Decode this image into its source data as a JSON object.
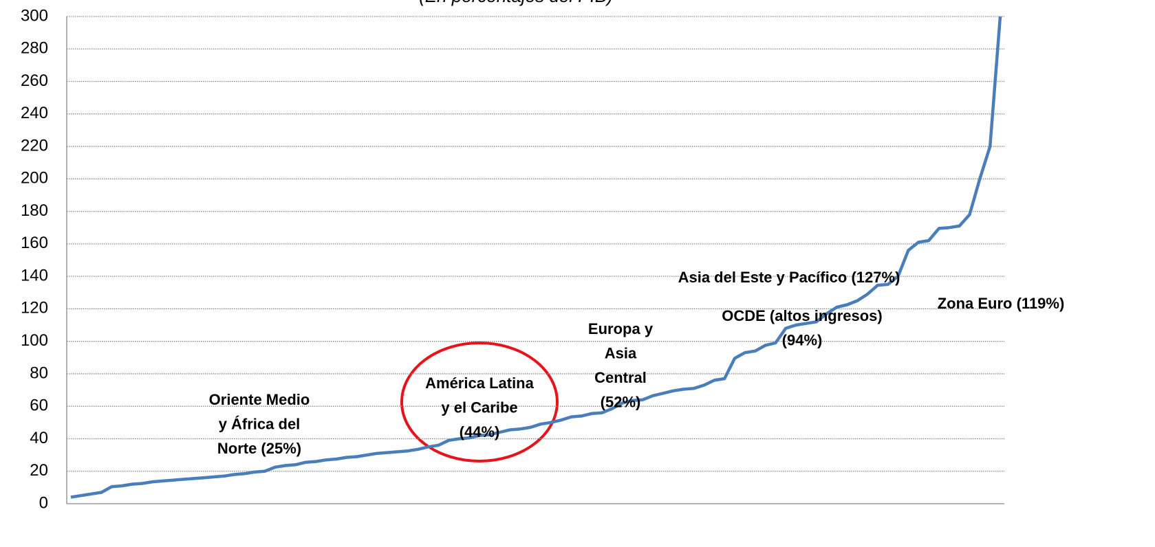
{
  "chart_data": {
    "type": "line",
    "subtitle": "(En porcentajes del PIB)",
    "categories": [
      null,
      null,
      null,
      null,
      null,
      null,
      null,
      null,
      null,
      null,
      null,
      null,
      null,
      null,
      null,
      null,
      null,
      null,
      null,
      null,
      null,
      null,
      null,
      null,
      null,
      null,
      null,
      null,
      null,
      null,
      null,
      null,
      null,
      null,
      null,
      null,
      null,
      null,
      null,
      null,
      null,
      null,
      null,
      null,
      null,
      null,
      null,
      null,
      null,
      null,
      null,
      null,
      null,
      null,
      null,
      null,
      null,
      null,
      null,
      null,
      null,
      null,
      null,
      null,
      null,
      null,
      null,
      null,
      null,
      null,
      null,
      null,
      null,
      null,
      null,
      null,
      null,
      null,
      null,
      null,
      null,
      null,
      null,
      null,
      null,
      null,
      null,
      null,
      null,
      null,
      null,
      null
    ],
    "series": [
      {
        "color": "#4a7ebb",
        "values": [
          4,
          5,
          6,
          7,
          10.5,
          11,
          12,
          12.5,
          13.5,
          14,
          14.5,
          15,
          15.5,
          16,
          16.5,
          17,
          18,
          18.5,
          19.5,
          20,
          22.5,
          23.5,
          24,
          25.5,
          26,
          27,
          27.5,
          28.5,
          29,
          30,
          31,
          31.5,
          32,
          32.5,
          33.5,
          35,
          36,
          39,
          40,
          40.5,
          42,
          42.5,
          44,
          45.5,
          46,
          47,
          49,
          50,
          51.5,
          53.5,
          54,
          55.5,
          56,
          58.5,
          62,
          63.5,
          64,
          66.5,
          68,
          69.5,
          70.5,
          71,
          73,
          76,
          77,
          89.5,
          93,
          94,
          97.5,
          99,
          108,
          110,
          111,
          112,
          117,
          121,
          122.5,
          125,
          129,
          134.5,
          135,
          140,
          156,
          161,
          162,
          169.5,
          170,
          171,
          178,
          200,
          220,
          300
        ]
      }
    ],
    "ylim": [
      0,
      300
    ],
    "yticks": [
      0,
      20,
      40,
      60,
      80,
      100,
      120,
      140,
      160,
      180,
      200,
      220,
      240,
      260,
      280,
      300
    ],
    "grid": true,
    "annotations": [
      {
        "lines": [
          "Oriente Medio",
          "y África del",
          "Norte (25%)"
        ]
      },
      {
        "lines": [
          "América Latina",
          "y el Caribe",
          "(44%)"
        ]
      },
      {
        "lines": [
          "Europa y",
          "Asia",
          "Central",
          "(52%)"
        ]
      },
      {
        "lines": [
          "OCDE (altos ingresos)",
          "(94%)"
        ]
      },
      {
        "lines": [
          "Asia del Este y Pacífico (127%)"
        ]
      },
      {
        "lines": [
          "Zona Euro (119%)"
        ]
      }
    ]
  }
}
